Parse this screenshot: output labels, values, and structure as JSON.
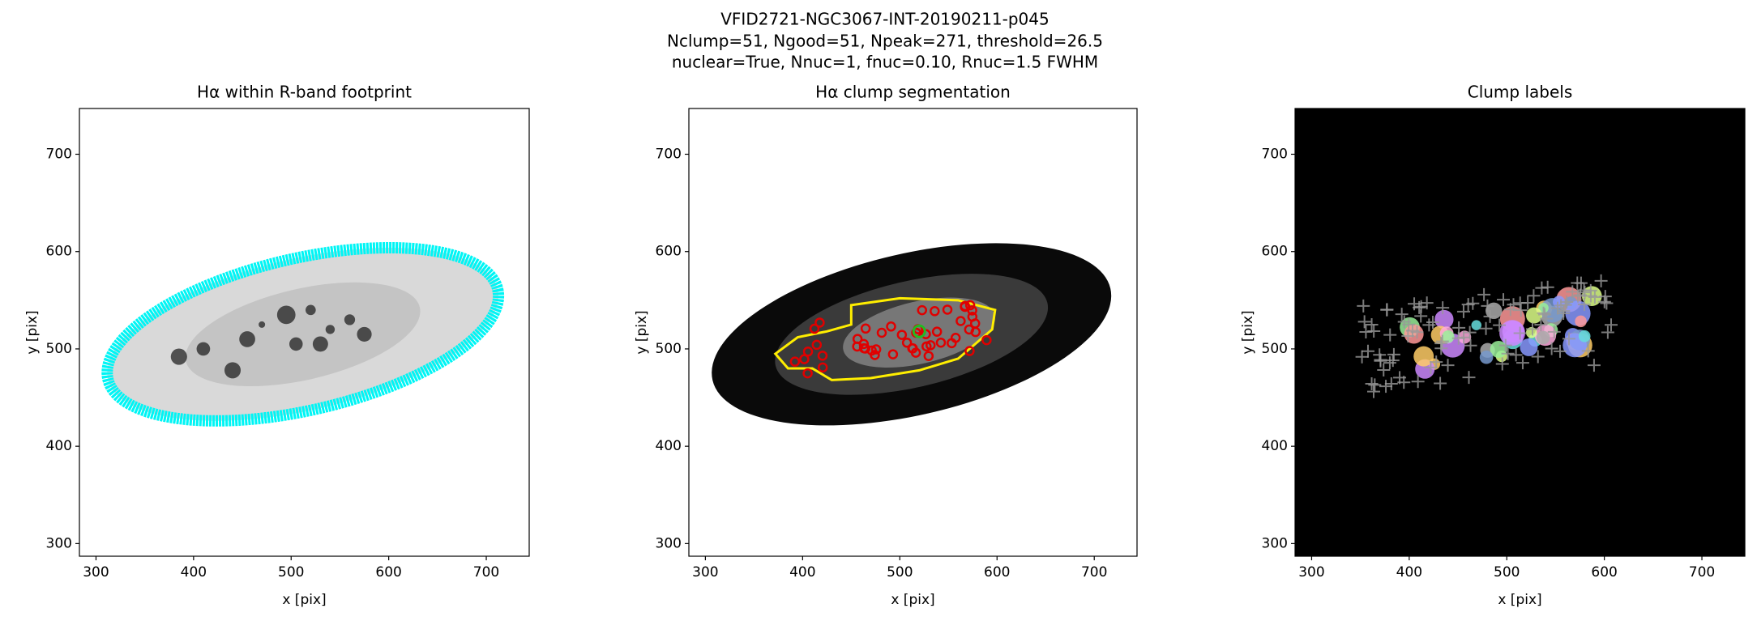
{
  "figure_title": [
    "VFID2721-NGC3067-INT-20190211-p045",
    "Nclump=51, Ngood=51, Npeak=271, threshold=26.5",
    "nuclear=True, Nnuc=1, fnuc=0.10, Rnuc=1.5 FWHM"
  ],
  "chart_data": [
    {
      "type": "image",
      "title": "Hα within R-band footprint",
      "xlabel": "x [pix]",
      "ylabel": "y [pix]",
      "xlim": [
        283,
        744
      ],
      "ylim": [
        287,
        747
      ],
      "xticks": [
        300,
        400,
        500,
        600,
        700
      ],
      "yticks": [
        300,
        400,
        500,
        600,
        700
      ],
      "background": "#ffffff"
    },
    {
      "type": "image",
      "title": "Hα clump segmentation",
      "xlabel": "x [pix]",
      "ylabel": "y [pix]",
      "xlim": [
        283,
        744
      ],
      "ylim": [
        287,
        747
      ],
      "xticks": [
        300,
        400,
        500,
        600,
        700
      ],
      "yticks": [
        300,
        400,
        500,
        600,
        700
      ],
      "background": "#ffffff"
    },
    {
      "type": "image",
      "title": "Clump labels",
      "xlabel": "x [pix]",
      "ylabel": "y [pix]",
      "xlim": [
        283,
        744
      ],
      "ylim": [
        287,
        747
      ],
      "xticks": [
        300,
        400,
        500,
        600,
        700
      ],
      "yticks": [
        300,
        400,
        500,
        600,
        700
      ],
      "background": "#000000"
    }
  ]
}
